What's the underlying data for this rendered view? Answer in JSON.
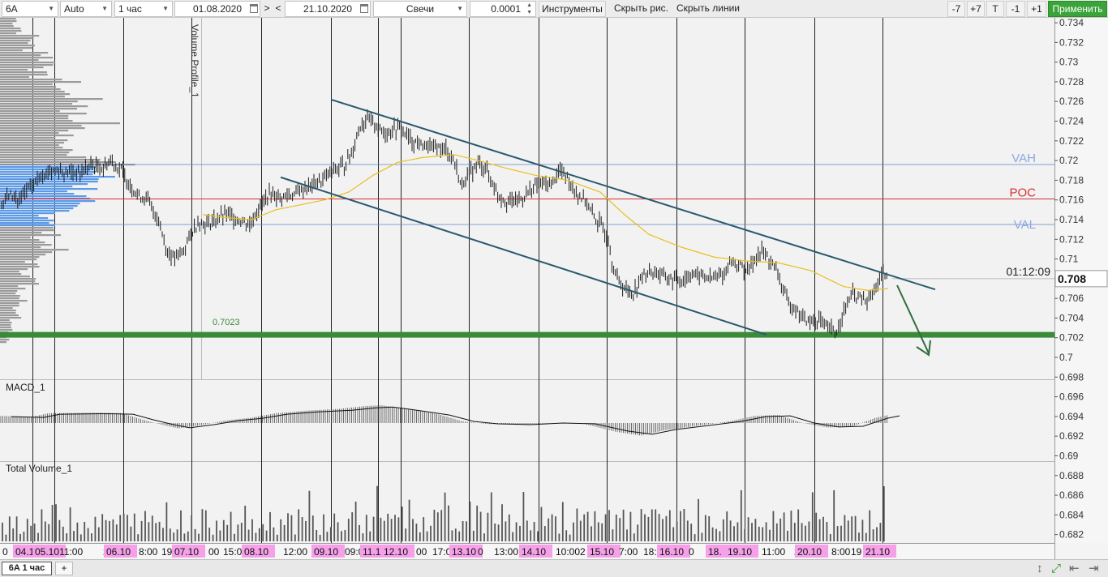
{
  "toolbar": {
    "symbol": "6A",
    "scale_mode": "Auto",
    "timeframe": "1 час",
    "date_from": "01.08.2020",
    "nav_next": ">",
    "nav_prev": "<",
    "date_to": "21.10.2020",
    "chart_type": "Свечи",
    "tick_size": "0.0001",
    "instruments_label": "Инструменты",
    "hide_drawings_label": "Скрыть рис.",
    "hide_lines_label": "Скрыть линии",
    "step_minus7": "-7",
    "step_plus7": "+7",
    "t_label": "T",
    "step_minus1": "-1",
    "step_plus1": "+1",
    "apply_label": "Применить"
  },
  "chart_data": {
    "type": "candlestick",
    "symbol": "6A",
    "timeframe": "1 час",
    "price_axis": {
      "ylim": [
        0.6795,
        0.7345
      ],
      "ticks": [
        "0.734",
        "0.732",
        "0.73",
        "0.728",
        "0.726",
        "0.724",
        "0.722",
        "0.72",
        "0.718",
        "0.716",
        "0.714",
        "0.712",
        "0.71",
        "0.708",
        "0.706",
        "0.704",
        "0.702",
        "0.7",
        "0.698",
        "0.696",
        "0.694",
        "0.692",
        "0.69",
        "0.688",
        "0.686",
        "0.684",
        "0.682"
      ]
    },
    "current_price": "0.708",
    "bar_countdown": "01:12:09",
    "levels": {
      "vah": 0.7196,
      "poc": 0.7161,
      "val": 0.7135,
      "support": 0.7023
    },
    "level_labels": {
      "vah": "VAH",
      "poc": "POC",
      "val": "VAL",
      "support": "0.7023"
    },
    "volume_profile_label": "Volume Profile_1",
    "macd_label": "MACD_1",
    "volume_label": "Total Volume_1",
    "time_labels": [
      "0",
      "04.10",
      "05.10",
      "11:00",
      "2",
      "06.10",
      "8:00",
      "19",
      "07.10",
      "00",
      "15:00",
      "08.10",
      "12:00",
      "09.10",
      "09:0",
      "11.1",
      "12.10",
      "00",
      "17:0",
      "13.10",
      "0",
      "13:00",
      "14.10",
      "10:00",
      "2",
      "15.10",
      "7:00",
      "18:0",
      "16.10",
      "0",
      "18.",
      "19.10",
      "11:00",
      "2",
      "20.10",
      "8:00",
      "19",
      "21.10"
    ],
    "price_path": [
      [
        0,
        0.7155
      ],
      [
        12,
        0.7165
      ],
      [
        22,
        0.716
      ],
      [
        35,
        0.717
      ],
      [
        50,
        0.7185
      ],
      [
        65,
        0.719
      ],
      [
        85,
        0.7188
      ],
      [
        100,
        0.7188
      ],
      [
        112,
        0.7195
      ],
      [
        125,
        0.7192
      ],
      [
        137,
        0.72
      ],
      [
        150,
        0.719
      ],
      [
        160,
        0.7175
      ],
      [
        170,
        0.7165
      ],
      [
        182,
        0.716
      ],
      [
        195,
        0.714
      ],
      [
        205,
        0.711
      ],
      [
        215,
        0.71
      ],
      [
        225,
        0.7108
      ],
      [
        235,
        0.7125
      ],
      [
        245,
        0.7138
      ],
      [
        255,
        0.7135
      ],
      [
        265,
        0.714
      ],
      [
        280,
        0.7145
      ],
      [
        295,
        0.714
      ],
      [
        308,
        0.7135
      ],
      [
        318,
        0.715
      ],
      [
        330,
        0.7165
      ],
      [
        345,
        0.7163
      ],
      [
        360,
        0.7165
      ],
      [
        372,
        0.717
      ],
      [
        385,
        0.7175
      ],
      [
        398,
        0.718
      ],
      [
        410,
        0.719
      ],
      [
        425,
        0.7195
      ],
      [
        435,
        0.721
      ],
      [
        443,
        0.7235
      ],
      [
        452,
        0.724
      ],
      [
        462,
        0.7238
      ],
      [
        472,
        0.7228
      ],
      [
        485,
        0.7232
      ],
      [
        495,
        0.7233
      ],
      [
        505,
        0.7222
      ],
      [
        520,
        0.7215
      ],
      [
        535,
        0.7213
      ],
      [
        550,
        0.7212
      ],
      [
        560,
        0.72
      ],
      [
        568,
        0.7175
      ],
      [
        578,
        0.7185
      ],
      [
        590,
        0.7198
      ],
      [
        600,
        0.719
      ],
      [
        612,
        0.7168
      ],
      [
        625,
        0.7158
      ],
      [
        640,
        0.716
      ],
      [
        652,
        0.7168
      ],
      [
        665,
        0.7178
      ],
      [
        678,
        0.7175
      ],
      [
        690,
        0.719
      ],
      [
        700,
        0.7183
      ],
      [
        712,
        0.7165
      ],
      [
        722,
        0.716
      ],
      [
        730,
        0.7145
      ],
      [
        740,
        0.7135
      ],
      [
        750,
        0.712
      ],
      [
        755,
        0.7095
      ],
      [
        762,
        0.7078
      ],
      [
        770,
        0.707
      ],
      [
        780,
        0.7065
      ],
      [
        790,
        0.708
      ],
      [
        800,
        0.7088
      ],
      [
        812,
        0.7085
      ],
      [
        825,
        0.708
      ],
      [
        840,
        0.7078
      ],
      [
        852,
        0.7085
      ],
      [
        865,
        0.7083
      ],
      [
        880,
        0.708
      ],
      [
        893,
        0.7085
      ],
      [
        902,
        0.7098
      ],
      [
        912,
        0.7093
      ],
      [
        922,
        0.7088
      ],
      [
        930,
        0.71
      ],
      [
        940,
        0.7108
      ],
      [
        950,
        0.7098
      ],
      [
        960,
        0.7083
      ],
      [
        970,
        0.7058
      ],
      [
        980,
        0.705
      ],
      [
        990,
        0.704
      ],
      [
        1000,
        0.7035
      ],
      [
        1010,
        0.7038
      ],
      [
        1020,
        0.703
      ],
      [
        1030,
        0.7025
      ],
      [
        1040,
        0.7045
      ],
      [
        1050,
        0.7065
      ],
      [
        1060,
        0.706
      ],
      [
        1070,
        0.7055
      ],
      [
        1080,
        0.7072
      ],
      [
        1088,
        0.7085
      ],
      [
        1095,
        0.708
      ]
    ],
    "ma_path": [
      [
        250,
        0.7145
      ],
      [
        280,
        0.7142
      ],
      [
        310,
        0.714
      ],
      [
        340,
        0.715
      ],
      [
        370,
        0.7155
      ],
      [
        400,
        0.716
      ],
      [
        430,
        0.7168
      ],
      [
        460,
        0.7185
      ],
      [
        490,
        0.7198
      ],
      [
        520,
        0.7203
      ],
      [
        560,
        0.7206
      ],
      [
        590,
        0.72
      ],
      [
        620,
        0.7193
      ],
      [
        660,
        0.7185
      ],
      [
        700,
        0.718
      ],
      [
        740,
        0.7168
      ],
      [
        770,
        0.7145
      ],
      [
        800,
        0.7125
      ],
      [
        840,
        0.7112
      ],
      [
        880,
        0.7102
      ],
      [
        920,
        0.7098
      ],
      [
        960,
        0.7096
      ],
      [
        1000,
        0.7088
      ],
      [
        1040,
        0.7072
      ],
      [
        1070,
        0.7068
      ],
      [
        1095,
        0.707
      ]
    ],
    "channel_upper": [
      [
        408,
        0.7262
      ],
      [
        1153,
        0.7069
      ]
    ],
    "channel_lower": [
      [
        346,
        0.7183
      ],
      [
        945,
        0.7023
      ]
    ],
    "macd_histogram_path": [
      [
        0,
        0.4
      ],
      [
        40,
        0.35
      ],
      [
        60,
        0.55
      ],
      [
        120,
        0.58
      ],
      [
        150,
        0.55
      ],
      [
        175,
        0.2
      ],
      [
        200,
        -0.1
      ],
      [
        220,
        -0.3
      ],
      [
        250,
        -0.1
      ],
      [
        280,
        0.15
      ],
      [
        310,
        0.3
      ],
      [
        340,
        0.55
      ],
      [
        380,
        0.7
      ],
      [
        420,
        0.8
      ],
      [
        450,
        0.95
      ],
      [
        470,
        1.0
      ],
      [
        500,
        0.8
      ],
      [
        540,
        0.5
      ],
      [
        570,
        0.1
      ],
      [
        600,
        -0.05
      ],
      [
        640,
        -0.1
      ],
      [
        680,
        0.0
      ],
      [
        720,
        -0.05
      ],
      [
        760,
        -0.5
      ],
      [
        790,
        -0.7
      ],
      [
        820,
        -0.4
      ],
      [
        860,
        -0.15
      ],
      [
        900,
        0.1
      ],
      [
        930,
        0.4
      ],
      [
        960,
        0.45
      ],
      [
        990,
        0.0
      ],
      [
        1020,
        -0.25
      ],
      [
        1050,
        -0.2
      ],
      [
        1080,
        0.3
      ],
      [
        1095,
        0.45
      ]
    ],
    "volume_profile_bars": [
      0.15,
      0.2,
      0.3,
      0.28,
      0.45,
      0.5,
      0.35,
      0.6,
      0.55,
      0.75,
      0.8,
      0.7,
      0.9,
      0.65,
      0.55,
      0.7,
      0.85,
      1.0,
      0.9,
      0.95,
      0.8,
      0.7,
      0.6,
      0.5,
      0.55,
      0.45,
      0.4,
      0.5,
      0.35,
      0.3,
      0.25,
      0.3,
      0.2,
      0.25,
      0.15,
      0.2,
      0.12,
      0.1,
      0.08
    ]
  },
  "colors": {
    "price_up": "#1a1a1a",
    "ma": "#e8c020",
    "channel": "#2a5a6e",
    "support": "#3a8a3a",
    "poc": "#d83030",
    "vah_val": "#6688cc",
    "profile_gray": "#9a9a9a",
    "profile_value_area": "#5a9ae8",
    "date_label_bg": "#f5a0e8",
    "apply_button": "#3aa43a"
  },
  "statusbar": {
    "tab_label": "6A 1 час",
    "add_tab": "+"
  }
}
